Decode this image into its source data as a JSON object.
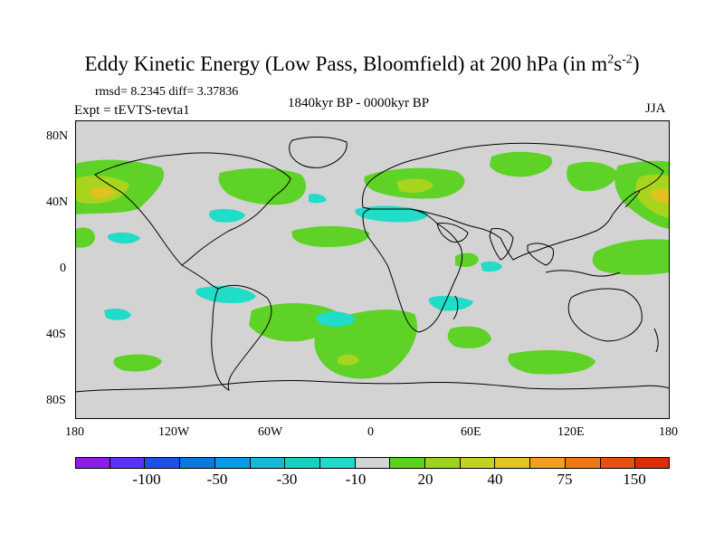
{
  "figure": {
    "title_main": "Eddy Kinetic Energy (Low Pass, Bloomfield) at 200 hPa (in m",
    "title_sup1": "2",
    "title_mid": "s",
    "title_sup2": "-2",
    "title_end": ")",
    "stats": "rmsd= 8.2345 diff= 3.37836",
    "experiment": "Expt = tEVTS-tevta1",
    "period": "1840kyr BP - 0000kyr BP",
    "season": "JJA"
  },
  "map": {
    "lon_labels": [
      "180",
      "120W",
      "60W",
      "0",
      "60E",
      "120E",
      "180"
    ],
    "lat_labels": [
      "80N",
      "40N",
      "0",
      "40S",
      "80S"
    ],
    "lon_range": [
      -180,
      180
    ],
    "lat_range": [
      -90,
      90
    ]
  },
  "colorbar": {
    "labels": [
      "-100",
      "-50",
      "-30",
      "-10",
      "20",
      "40",
      "75",
      "150"
    ],
    "colors": [
      "#8c1ee6",
      "#5a32ff",
      "#1e50e6",
      "#0a78dc",
      "#0a9be6",
      "#14b9d2",
      "#14d2be",
      "#1edcc8",
      "#d3d3d3",
      "#5ad21e",
      "#9bd21e",
      "#c3d21e",
      "#e6c31e",
      "#f0a01e",
      "#f07814",
      "#e65014",
      "#dc2d0a"
    ]
  },
  "regions": {
    "positive_color": "#5fd228",
    "positive_strong_color": "#a8d41e",
    "positive_peak_color": "#e0c21e",
    "negative_color": "#20dcc8"
  }
}
